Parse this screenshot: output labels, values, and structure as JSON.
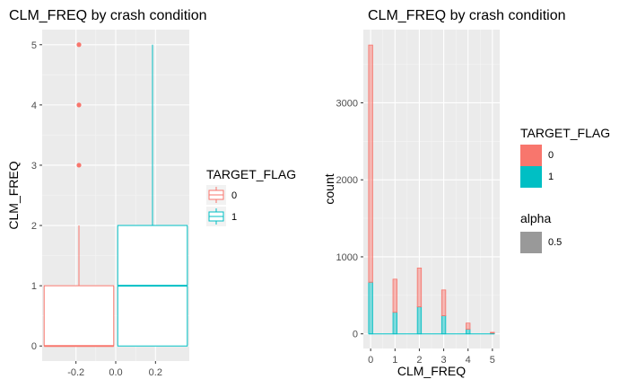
{
  "chart_data": [
    {
      "type": "boxplot",
      "title": "CLM_FREQ by crash condition",
      "xlabel": "",
      "ylabel": "CLM_FREQ",
      "xlim": [
        -0.37,
        0.37
      ],
      "ylim": [
        -0.25,
        5.25
      ],
      "x_ticks": [
        -0.2,
        0.0,
        0.2
      ],
      "x_tick_labels": [
        "-0.2",
        "0.0",
        "0.2"
      ],
      "y_ticks": [
        0,
        1,
        2,
        3,
        4,
        5
      ],
      "y_tick_labels": [
        "0",
        "1",
        "2",
        "3",
        "4",
        "5"
      ],
      "grid": true,
      "legend": {
        "title": "TARGET_FLAG",
        "placement": "right",
        "entries": [
          {
            "label": "0",
            "color": "#F8766D"
          },
          {
            "label": "1",
            "color": "#00BFC4"
          }
        ]
      },
      "boxes": [
        {
          "group": "0",
          "color": "#F8766D",
          "x_min": -0.36,
          "x_max": -0.01,
          "x_center": -0.185,
          "q1": 0,
          "median": 0,
          "q3": 1,
          "whisker_low": 0,
          "whisker_high": 2,
          "outliers": [
            3,
            4,
            5
          ]
        },
        {
          "group": "1",
          "color": "#00BFC4",
          "x_min": 0.01,
          "x_max": 0.36,
          "x_center": 0.185,
          "q1": 0,
          "median": 1,
          "q3": 2,
          "whisker_low": 0,
          "whisker_high": 5,
          "outliers": []
        }
      ]
    },
    {
      "type": "histogram",
      "title": "CLM_FREQ by crash condition",
      "xlabel": "CLM_FREQ",
      "ylabel": "count",
      "xlim": [
        -0.3,
        5.3
      ],
      "ylim": [
        -190,
        3950
      ],
      "x_ticks": [
        0,
        1,
        2,
        3,
        4,
        5
      ],
      "x_tick_labels": [
        "0",
        "1",
        "2",
        "3",
        "4",
        "5"
      ],
      "y_ticks": [
        0,
        1000,
        2000,
        3000
      ],
      "y_tick_labels": [
        "0",
        "1000",
        "2000",
        "3000"
      ],
      "bin_width": 0.1667,
      "grid": true,
      "legend": {
        "title": "TARGET_FLAG",
        "placement": "right",
        "entries": [
          {
            "label": "0",
            "color": "#F8766D"
          },
          {
            "label": "1",
            "color": "#00BFC4"
          }
        ],
        "alpha_title": "alpha",
        "alpha_entries": [
          {
            "label": "0.5",
            "color": "#999999"
          }
        ]
      },
      "x": [
        0,
        1,
        2,
        3,
        4,
        5
      ],
      "series": [
        {
          "name": "1",
          "color": "#00BFC4",
          "values": [
            670,
            280,
            350,
            235,
            60,
            10
          ]
        },
        {
          "name": "0",
          "color": "#F8766D",
          "values": [
            3080,
            430,
            505,
            335,
            80,
            10
          ]
        }
      ]
    }
  ]
}
